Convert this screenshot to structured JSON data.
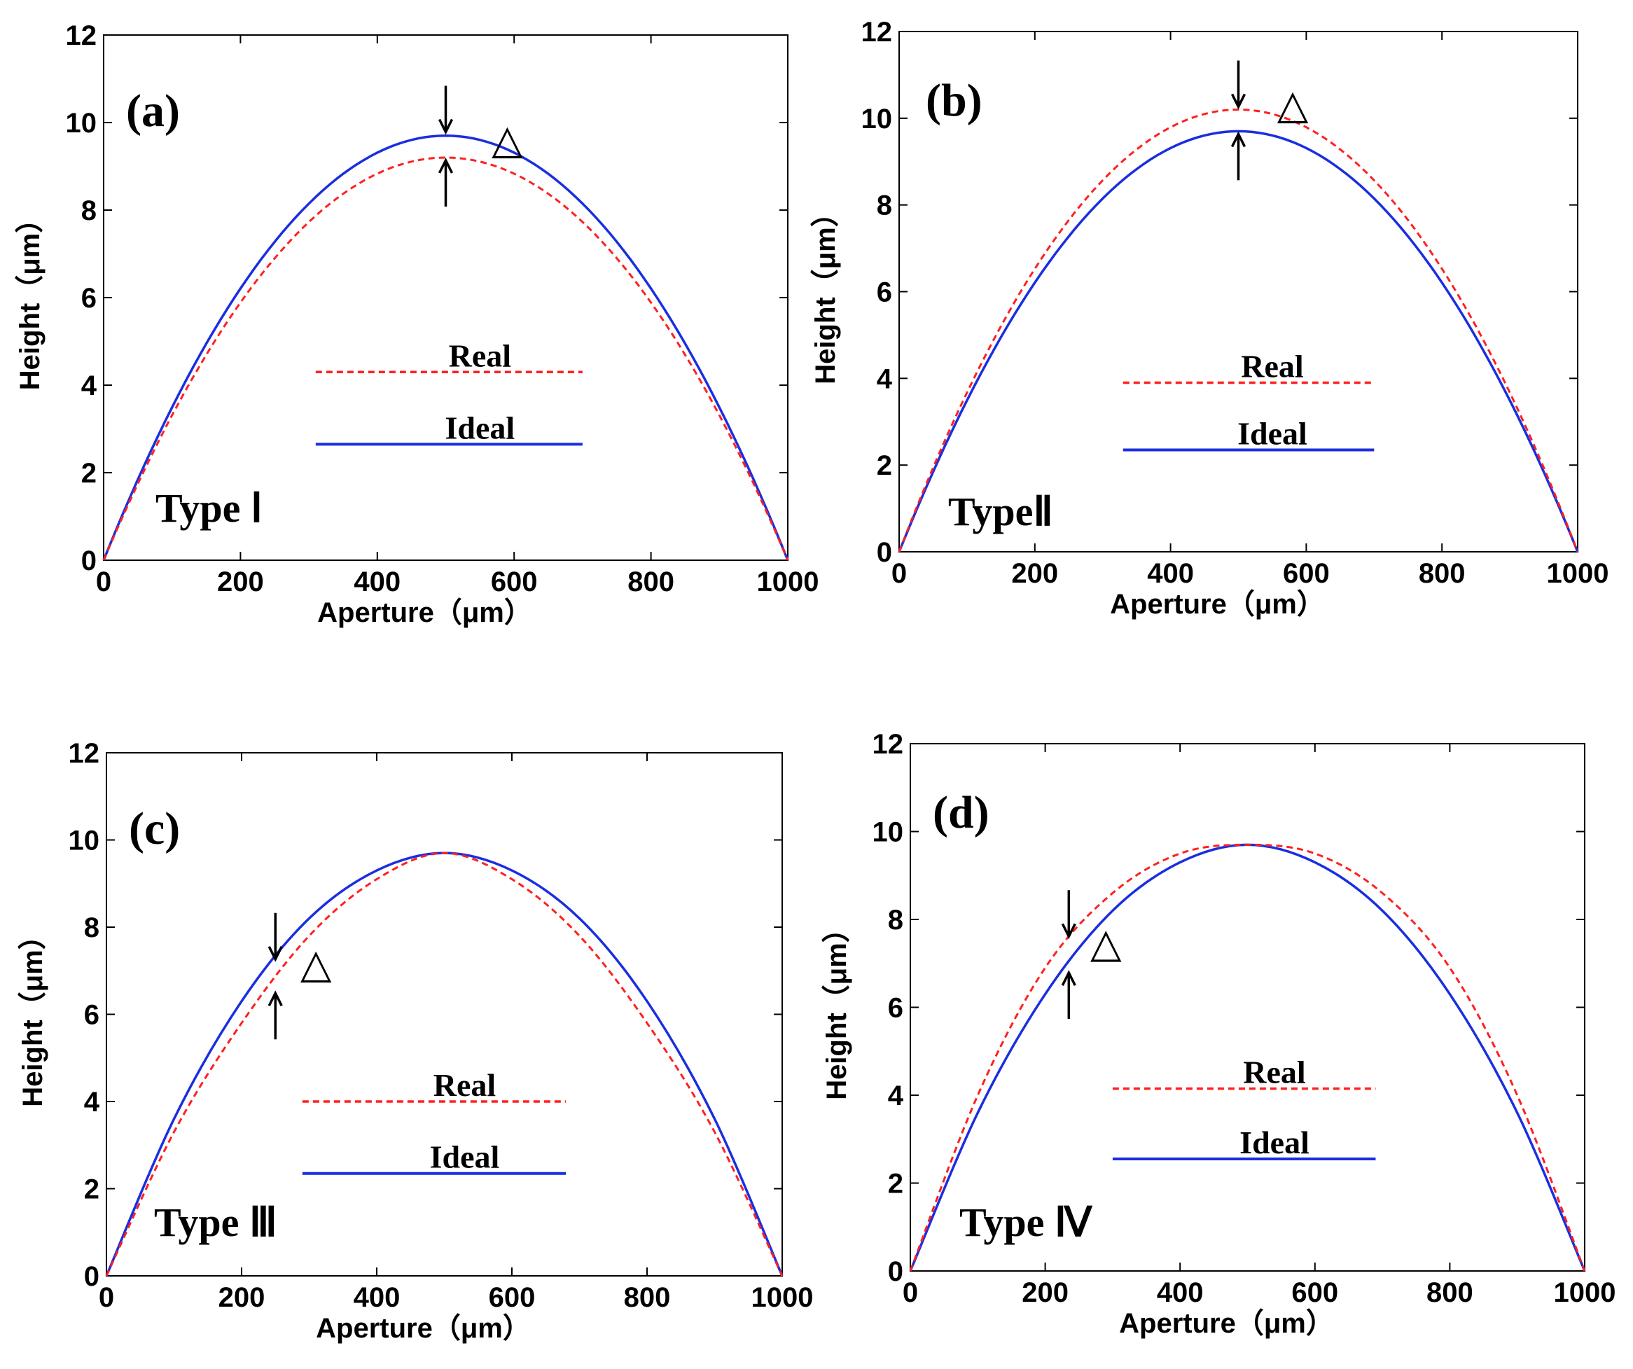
{
  "chart_data": [
    {
      "type": "line",
      "panel_tag": "(a)",
      "type_label": "Type Ⅰ",
      "xlabel": "Aperture（μm）",
      "ylabel": "Height（μm）",
      "xlim": [
        0,
        1000
      ],
      "ylim": [
        0,
        12
      ],
      "xticks": [
        0,
        200,
        400,
        600,
        800,
        1000
      ],
      "yticks": [
        0,
        2,
        4,
        6,
        8,
        10,
        12
      ],
      "legend_placement": "center",
      "annotation": "△",
      "arrow_x": 500,
      "series": [
        {
          "name": "Real",
          "style": "dashed",
          "color": "#ff2020",
          "x": [
            0,
            100,
            200,
            300,
            400,
            500,
            600,
            700,
            800,
            900,
            1000
          ],
          "y": [
            0,
            3.6,
            6.2,
            7.9,
            8.9,
            9.2,
            8.9,
            7.9,
            6.2,
            3.6,
            0
          ]
        },
        {
          "name": "Ideal",
          "style": "solid",
          "color": "#1a2ee0",
          "x": [
            0,
            100,
            200,
            300,
            400,
            500,
            600,
            700,
            800,
            900,
            1000
          ],
          "y": [
            0,
            3.6,
            6.3,
            8.2,
            9.3,
            9.7,
            9.3,
            8.2,
            6.3,
            3.6,
            0
          ]
        }
      ]
    },
    {
      "type": "line",
      "panel_tag": "(b)",
      "type_label": "TypeⅡ",
      "xlabel": "Aperture（μm）",
      "ylabel": "Height（μm）",
      "xlim": [
        0,
        1000
      ],
      "ylim": [
        0,
        12
      ],
      "xticks": [
        0,
        200,
        400,
        600,
        800,
        1000
      ],
      "yticks": [
        0,
        2,
        4,
        6,
        8,
        10,
        12
      ],
      "legend_placement": "center",
      "annotation": "△",
      "arrow_x": 500,
      "series": [
        {
          "name": "Real",
          "style": "dashed",
          "color": "#ff2020",
          "x": [
            0,
            100,
            200,
            300,
            400,
            500,
            600,
            700,
            800,
            900,
            1000
          ],
          "y": [
            0,
            3.7,
            6.6,
            8.6,
            9.8,
            10.2,
            9.8,
            8.6,
            6.6,
            3.7,
            0
          ]
        },
        {
          "name": "Ideal",
          "style": "solid",
          "color": "#1a2ee0",
          "x": [
            0,
            100,
            200,
            300,
            400,
            500,
            600,
            700,
            800,
            900,
            1000
          ],
          "y": [
            0,
            3.6,
            6.3,
            8.2,
            9.3,
            9.7,
            9.3,
            8.2,
            6.3,
            3.6,
            0
          ]
        }
      ]
    },
    {
      "type": "line",
      "panel_tag": "(c)",
      "type_label": "Type Ⅲ",
      "xlabel": "Aperture（μm）",
      "ylabel": "Height（μm）",
      "xlim": [
        0,
        1000
      ],
      "ylim": [
        0,
        12
      ],
      "xticks": [
        0,
        200,
        400,
        600,
        800,
        1000
      ],
      "yticks": [
        0,
        2,
        4,
        6,
        8,
        10,
        12
      ],
      "legend_placement": "center",
      "annotation": "△",
      "arrow_x": 250,
      "series": [
        {
          "name": "Real",
          "style": "dashed",
          "color": "#ff2020",
          "x": [
            0,
            100,
            200,
            300,
            400,
            500,
            600,
            700,
            800,
            900,
            1000
          ],
          "y": [
            0,
            3.3,
            5.8,
            7.8,
            9.1,
            9.7,
            9.1,
            7.8,
            5.8,
            3.3,
            0
          ]
        },
        {
          "name": "Ideal",
          "style": "solid",
          "color": "#1a2ee0",
          "x": [
            0,
            100,
            200,
            300,
            400,
            500,
            600,
            700,
            800,
            900,
            1000
          ],
          "y": [
            0,
            3.6,
            6.3,
            8.2,
            9.3,
            9.7,
            9.3,
            8.2,
            6.3,
            3.6,
            0
          ]
        }
      ]
    },
    {
      "type": "line",
      "panel_tag": "(d)",
      "type_label": "Type Ⅳ",
      "xlabel": "Aperture（μm）",
      "ylabel": "Height（μm）",
      "xlim": [
        0,
        1000
      ],
      "ylim": [
        0,
        12
      ],
      "xticks": [
        0,
        200,
        400,
        600,
        800,
        1000
      ],
      "yticks": [
        0,
        2,
        4,
        6,
        8,
        10,
        12
      ],
      "legend_placement": "center",
      "annotation": "△",
      "arrow_x": 235,
      "series": [
        {
          "name": "Real",
          "style": "dashed",
          "color": "#ff2020",
          "x": [
            0,
            100,
            200,
            300,
            400,
            500,
            600,
            700,
            800,
            900,
            1000
          ],
          "y": [
            0,
            4.0,
            6.9,
            8.6,
            9.5,
            9.7,
            9.5,
            8.6,
            6.9,
            4.0,
            0
          ]
        },
        {
          "name": "Ideal",
          "style": "solid",
          "color": "#1a2ee0",
          "x": [
            0,
            100,
            200,
            300,
            400,
            500,
            600,
            700,
            800,
            900,
            1000
          ],
          "y": [
            0,
            3.6,
            6.3,
            8.2,
            9.3,
            9.7,
            9.3,
            8.2,
            6.3,
            3.6,
            0
          ]
        }
      ]
    }
  ]
}
